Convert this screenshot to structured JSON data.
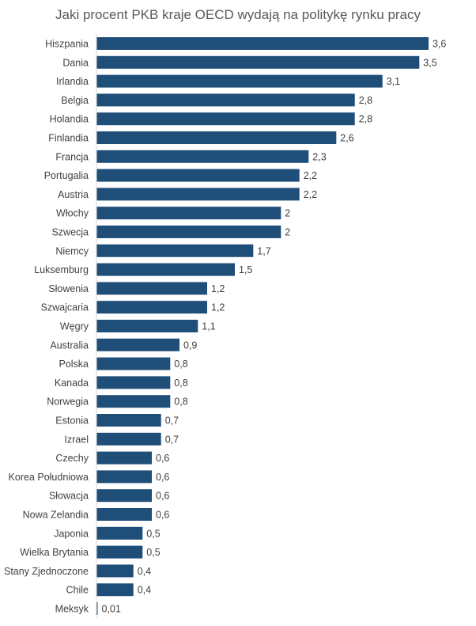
{
  "chart_data": {
    "type": "bar",
    "orientation": "horizontal",
    "title": "Jaki procent PKB kraje OECD wydają na politykę rynku pracy",
    "xlabel": "",
    "ylabel": "",
    "xlim": [
      0,
      3.6
    ],
    "grid": false,
    "legend": "none",
    "bar_color": "#1f4e79",
    "categories": [
      "Hiszpania",
      "Dania",
      "Irlandia",
      "Belgia",
      "Holandia",
      "Finlandia",
      "Francja",
      "Portugalia",
      "Austria",
      "Włochy",
      "Szwecja",
      "Niemcy",
      "Luksemburg",
      "Słowenia",
      "Szwajcaria",
      "Węgry",
      "Australia",
      "Polska",
      "Kanada",
      "Norwegia",
      "Estonia",
      "Izrael",
      "Czechy",
      "Korea Południowa",
      "Słowacja",
      "Nowa Zelandia",
      "Japonia",
      "Wielka Brytania",
      "Stany Zjednoczone",
      "Chile",
      "Meksyk"
    ],
    "values": [
      3.6,
      3.5,
      3.1,
      2.8,
      2.8,
      2.6,
      2.3,
      2.2,
      2.2,
      2,
      2,
      1.7,
      1.5,
      1.2,
      1.2,
      1.1,
      0.9,
      0.8,
      0.8,
      0.8,
      0.7,
      0.7,
      0.6,
      0.6,
      0.6,
      0.6,
      0.5,
      0.5,
      0.4,
      0.4,
      0.01
    ],
    "value_labels": [
      "3,6",
      "3,5",
      "3,1",
      "2,8",
      "2,8",
      "2,6",
      "2,3",
      "2,2",
      "2,2",
      "2",
      "2",
      "1,7",
      "1,5",
      "1,2",
      "1,2",
      "1,1",
      "0,9",
      "0,8",
      "0,8",
      "0,8",
      "0,7",
      "0,7",
      "0,6",
      "0,6",
      "0,6",
      "0,6",
      "0,5",
      "0,5",
      "0,4",
      "0,4",
      "0,01"
    ]
  }
}
